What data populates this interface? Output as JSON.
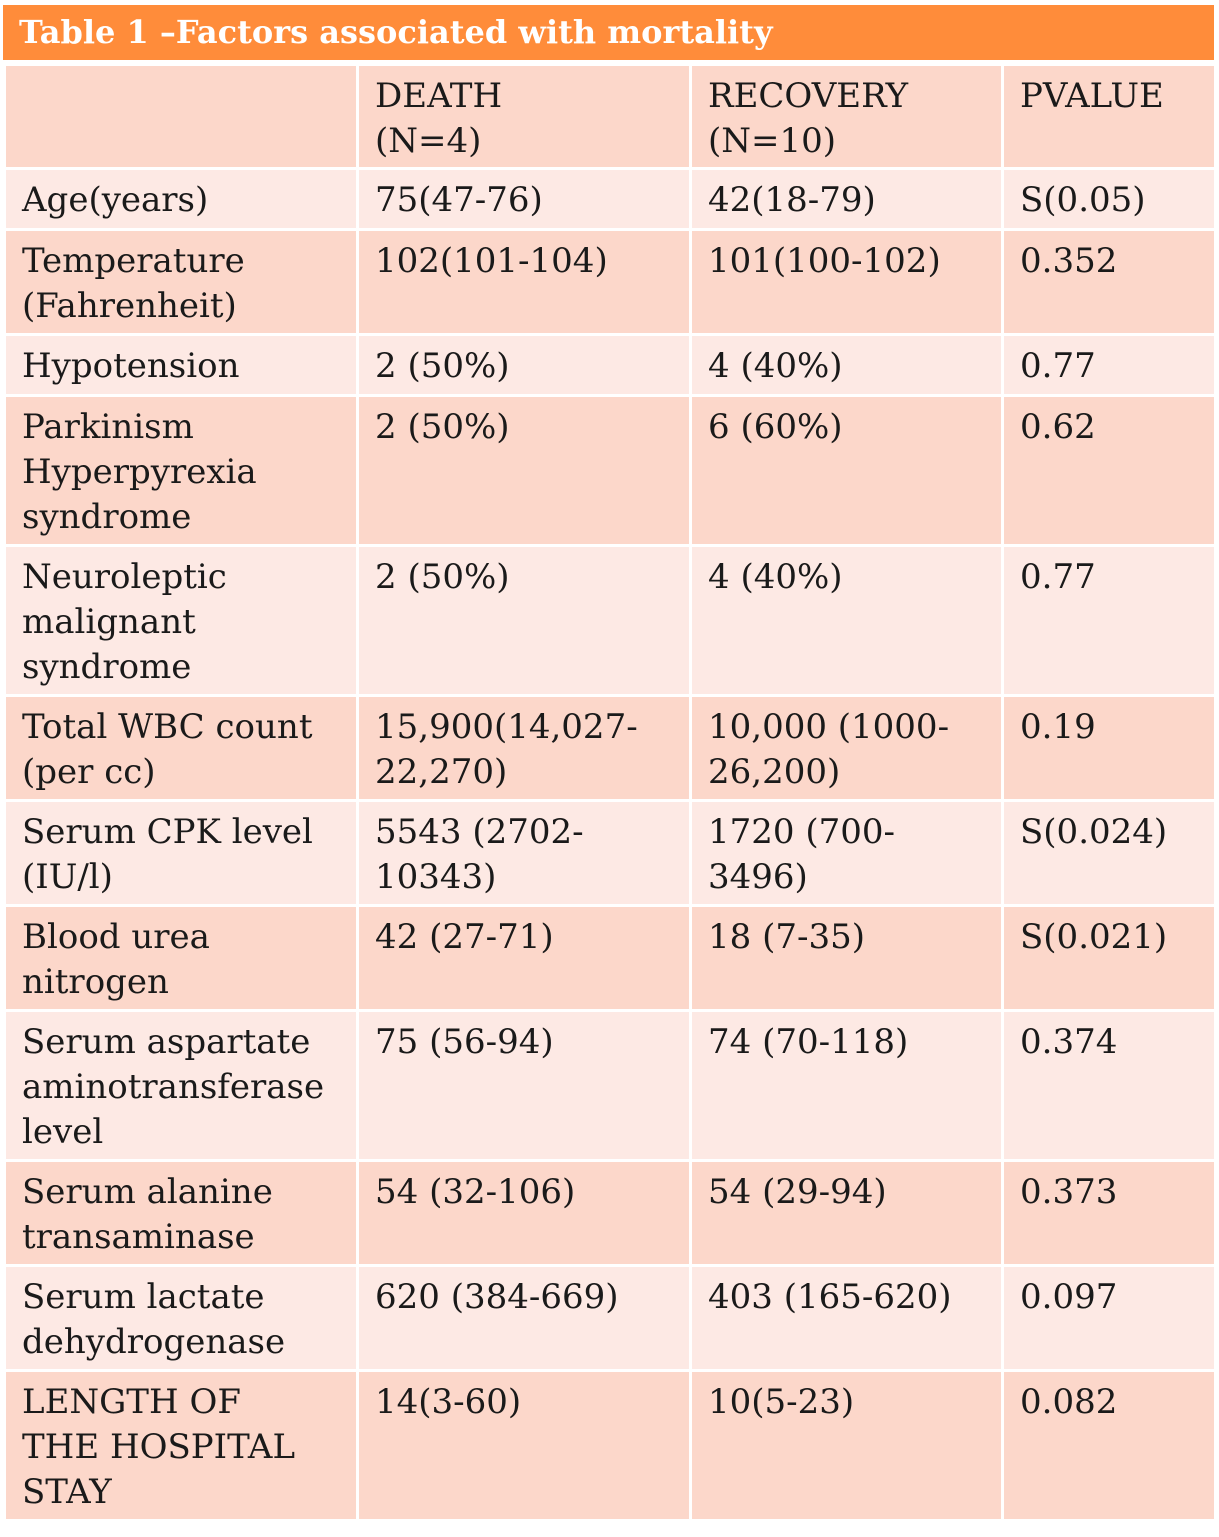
{
  "table": {
    "title": "Table 1 –Factors associated with mortality",
    "header": [
      "",
      "DEATH\n(N=4)",
      "RECOVERY\n(N=10)",
      "PVALUE"
    ],
    "rows": [
      [
        "Age(years)",
        "75(47-76)",
        "42(18-79)",
        "S(0.05)"
      ],
      [
        "Temperature\n(Fahrenheit)",
        "102(101-104)",
        "101(100-102)",
        "0.352"
      ],
      [
        "Hypotension",
        "2 (50%)",
        "4 (40%)",
        "0.77"
      ],
      [
        "Parkinism\nHyperpyrexia\nsyndrome",
        "2 (50%)",
        "6 (60%)",
        "0.62"
      ],
      [
        "Neuroleptic\nmalignant\nsyndrome",
        "2 (50%)",
        "4 (40%)",
        "0.77"
      ],
      [
        "Total WBC count\n(per cc)",
        "15,900(14,027-\n22,270)",
        "10,000 (1000-\n26,200)",
        "0.19"
      ],
      [
        "Serum CPK level\n(IU/l)",
        "5543 (2702-\n10343)",
        "1720 (700-3496)",
        "S(0.024)"
      ],
      [
        "Blood urea\nnitrogen",
        "42 (27-71)",
        "18 (7-35)",
        "S(0.021)"
      ],
      [
        "Serum aspartate\naminotransferase\nlevel",
        "75 (56-94)",
        "74 (70-118)",
        "0.374"
      ],
      [
        "Serum alanine\ntransaminase",
        "54 (32-106)",
        "54 (29-94)",
        "0.373"
      ],
      [
        "Serum lactate\ndehydrogenase",
        "620 (384-669)",
        "403 (165-620)",
        "0.097"
      ],
      [
        "LENGTH OF\nTHE HOSPITAL\nSTAY",
        "14(3-60)",
        "10(5-23)",
        "0.082"
      ]
    ]
  },
  "colors": {
    "title_bg": "#ff8c3a",
    "header_bg": "#fcd7ca",
    "row_light": "#fde9e4",
    "row_dark": "#fcd7ca"
  }
}
